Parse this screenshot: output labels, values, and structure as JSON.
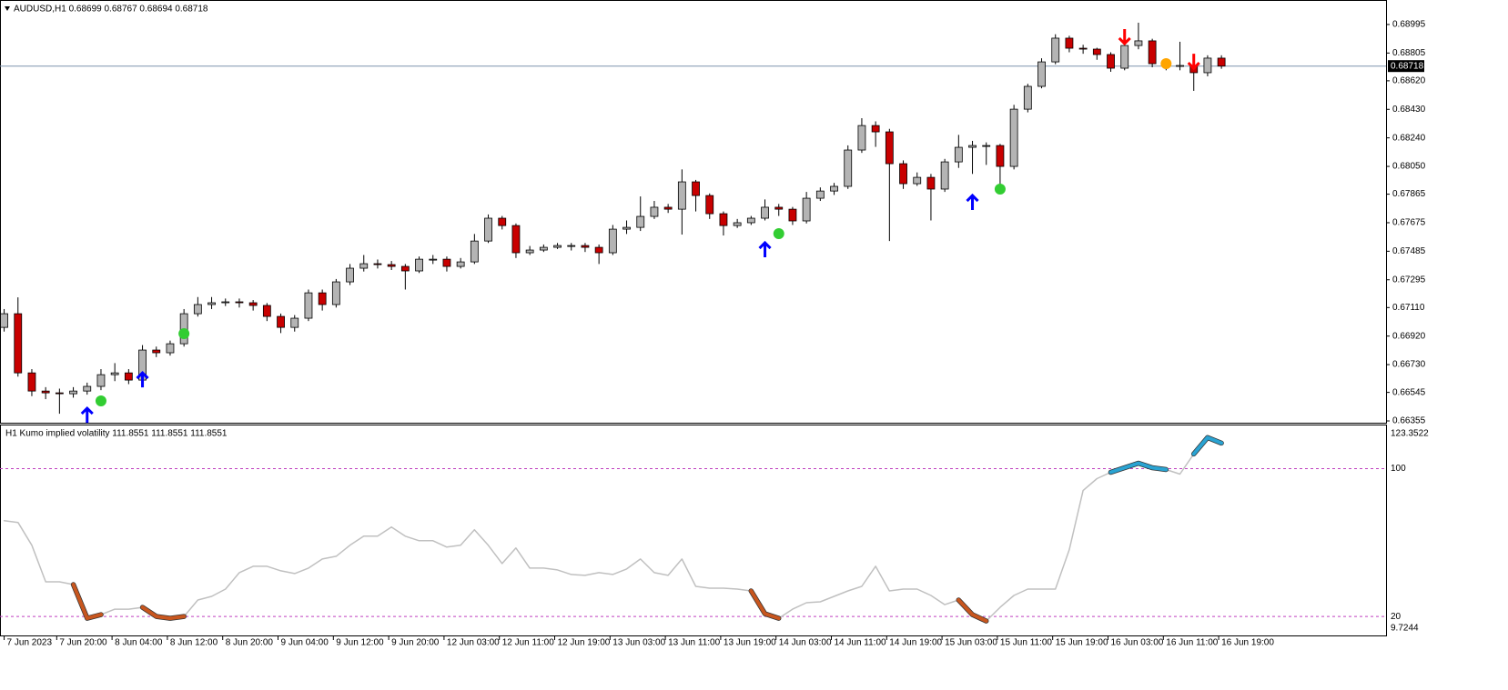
{
  "chart_data": [
    {
      "type": "candlestick",
      "title": "AUDUSD,H1  0.68699 0.68767 0.68694 0.68718",
      "xlim": [
        -0.3,
        99.9
      ],
      "ylim": [
        0.66343,
        0.69146
      ],
      "yticks": [
        0.68995,
        0.68805,
        {
          "value": 0.6862,
          "label": "0.68620"
        },
        {
          "value": 0.6843,
          "label": "0.68430"
        },
        {
          "value": 0.6824,
          "label": "0.68240"
        },
        {
          "value": 0.6805,
          "label": "0.68050"
        },
        0.67865,
        0.67675,
        0.67485,
        0.67295,
        {
          "value": 0.6711,
          "label": "0.67110"
        },
        {
          "value": 0.6692,
          "label": "0.66920"
        },
        {
          "value": 0.6673,
          "label": "0.66730"
        },
        0.66545,
        0.66355
      ],
      "last_price": 0.68718,
      "up_color": "#b4b4b4",
      "down_color": "#c80000",
      "ohlc": [
        [
          0.66978,
          0.671,
          0.6695,
          0.67069
        ],
        [
          0.67069,
          0.67178,
          0.6665,
          0.66675
        ],
        [
          0.66675,
          0.667,
          0.6652,
          0.66554
        ],
        [
          0.66554,
          0.6658,
          0.665,
          0.66542
        ],
        [
          0.66542,
          0.6657,
          0.66403,
          0.66536
        ],
        [
          0.66536,
          0.6658,
          0.6651,
          0.66554
        ],
        [
          0.66554,
          0.6661,
          0.6653,
          0.66585
        ],
        [
          0.66585,
          0.667,
          0.6656,
          0.66663
        ],
        [
          0.66663,
          0.6674,
          0.6662,
          0.66675
        ],
        [
          0.66675,
          0.667,
          0.666,
          0.66627
        ],
        [
          0.66627,
          0.6686,
          0.6661,
          0.66827
        ],
        [
          0.66827,
          0.6685,
          0.6678,
          0.66809
        ],
        [
          0.66809,
          0.6689,
          0.6679,
          0.66869
        ],
        [
          0.66869,
          0.671,
          0.6685,
          0.67069
        ],
        [
          0.67069,
          0.6718,
          0.6705,
          0.6713
        ],
        [
          0.6713,
          0.6718,
          0.671,
          0.67142
        ],
        [
          0.67142,
          0.6717,
          0.6712,
          0.67148
        ],
        [
          0.67148,
          0.6717,
          0.6711,
          0.67142
        ],
        [
          0.67142,
          0.6716,
          0.6709,
          0.67124
        ],
        [
          0.67124,
          0.6714,
          0.6702,
          0.67051
        ],
        [
          0.67051,
          0.6707,
          0.6694,
          0.66978
        ],
        [
          0.66978,
          0.6706,
          0.6695,
          0.67039
        ],
        [
          0.67039,
          0.6723,
          0.6702,
          0.67208
        ],
        [
          0.67208,
          0.6723,
          0.6709,
          0.6713
        ],
        [
          0.6713,
          0.673,
          0.6711,
          0.67281
        ],
        [
          0.67281,
          0.674,
          0.6726,
          0.67372
        ],
        [
          0.67372,
          0.6746,
          0.6735,
          0.67402
        ],
        [
          0.67402,
          0.6743,
          0.6737,
          0.67396
        ],
        [
          0.67396,
          0.6742,
          0.6736,
          0.67384
        ],
        [
          0.67384,
          0.674,
          0.6723,
          0.67354
        ],
        [
          0.67354,
          0.6745,
          0.6734,
          0.67432
        ],
        [
          0.67432,
          0.6746,
          0.674,
          0.67432
        ],
        [
          0.67432,
          0.6745,
          0.6735,
          0.67384
        ],
        [
          0.67384,
          0.6744,
          0.6737,
          0.67414
        ],
        [
          0.67414,
          0.676,
          0.674,
          0.67553
        ],
        [
          0.67553,
          0.6773,
          0.6754,
          0.67705
        ],
        [
          0.67705,
          0.6772,
          0.6763,
          0.67656
        ],
        [
          0.67656,
          0.6767,
          0.6744,
          0.67475
        ],
        [
          0.67475,
          0.6752,
          0.6746,
          0.67493
        ],
        [
          0.67493,
          0.6753,
          0.6748,
          0.67511
        ],
        [
          0.67511,
          0.6754,
          0.675,
          0.67523
        ],
        [
          0.67523,
          0.6754,
          0.6749,
          0.67523
        ],
        [
          0.67523,
          0.6754,
          0.6748,
          0.67511
        ],
        [
          0.67511,
          0.6753,
          0.674,
          0.67475
        ],
        [
          0.67475,
          0.6766,
          0.6746,
          0.67632
        ],
        [
          0.67632,
          0.6769,
          0.676,
          0.67644
        ],
        [
          0.67644,
          0.6785,
          0.6762,
          0.67717
        ],
        [
          0.67717,
          0.6782,
          0.677,
          0.67778
        ],
        [
          0.67778,
          0.678,
          0.6774,
          0.67765
        ],
        [
          0.67765,
          0.6803,
          0.67596,
          0.67947
        ],
        [
          0.67947,
          0.6796,
          0.6775,
          0.67856
        ],
        [
          0.67856,
          0.6787,
          0.677,
          0.67735
        ],
        [
          0.67735,
          0.6775,
          0.6759,
          0.67656
        ],
        [
          0.67656,
          0.677,
          0.6764,
          0.67675
        ],
        [
          0.67675,
          0.6772,
          0.6766,
          0.67705
        ],
        [
          0.67705,
          0.6783,
          0.6769,
          0.67778
        ],
        [
          0.67778,
          0.678,
          0.6772,
          0.67765
        ],
        [
          0.67765,
          0.6778,
          0.6766,
          0.67687
        ],
        [
          0.67687,
          0.6788,
          0.6767,
          0.67838
        ],
        [
          0.67838,
          0.6791,
          0.6782,
          0.67886
        ],
        [
          0.67886,
          0.6794,
          0.6786,
          0.67917
        ],
        [
          0.67917,
          0.6819,
          0.679,
          0.68159
        ],
        [
          0.68159,
          0.68371,
          0.6814,
          0.68322
        ],
        [
          0.68322,
          0.6835,
          0.6818,
          0.6828
        ],
        [
          0.6828,
          0.683,
          0.67553,
          0.68068
        ],
        [
          0.68068,
          0.6809,
          0.679,
          0.67935
        ],
        [
          0.67935,
          0.6801,
          0.6792,
          0.67977
        ],
        [
          0.67977,
          0.68,
          0.6769,
          0.67899
        ],
        [
          0.67899,
          0.681,
          0.6788,
          0.6808
        ],
        [
          0.6808,
          0.6826,
          0.6804,
          0.68177
        ],
        [
          0.68177,
          0.6822,
          0.68,
          0.68189
        ],
        [
          0.68189,
          0.6821,
          0.6806,
          0.68189
        ],
        [
          0.68189,
          0.682,
          0.679,
          0.6805
        ],
        [
          0.6805,
          0.6846,
          0.6803,
          0.68431
        ],
        [
          0.68431,
          0.686,
          0.6841,
          0.68583
        ],
        [
          0.68583,
          0.6877,
          0.6857,
          0.68746
        ],
        [
          0.68746,
          0.6893,
          0.6873,
          0.68904
        ],
        [
          0.68904,
          0.6892,
          0.6881,
          0.68837
        ],
        [
          0.68837,
          0.6886,
          0.688,
          0.68831
        ],
        [
          0.68831,
          0.6884,
          0.6876,
          0.68795
        ],
        [
          0.68795,
          0.6881,
          0.6868,
          0.68704
        ],
        [
          0.68704,
          0.6888,
          0.6869,
          0.68855
        ],
        [
          0.68855,
          0.69007,
          0.6883,
          0.68886
        ],
        [
          0.68886,
          0.689,
          0.6871,
          0.68734
        ],
        [
          0.68734,
          0.6876,
          0.6869,
          0.68722
        ],
        [
          0.68722,
          0.6888,
          0.6869,
          0.68722
        ],
        [
          0.68722,
          0.6876,
          0.68553,
          0.68674
        ],
        [
          0.68674,
          0.6879,
          0.6865,
          0.68771
        ],
        [
          0.68771,
          0.6879,
          0.687,
          0.68718
        ]
      ],
      "markers": [
        {
          "shape": "arrow-up",
          "color": "#0000ff",
          "x": [
            6,
            10,
            55,
            70
          ],
          "values": [
            0.66391,
            0.66627,
            0.67493,
            0.67808
          ]
        },
        {
          "shape": "dot",
          "color": "#32cd32",
          "x": [
            7,
            13,
            56,
            72
          ],
          "values": [
            0.66488,
            0.66936,
            0.67602,
            0.67899
          ]
        },
        {
          "shape": "arrow-down",
          "color": "#ff0000",
          "x": [
            81,
            86
          ],
          "values": [
            0.68916,
            0.68752
          ]
        },
        {
          "shape": "dot",
          "color": "#ffa500",
          "x": [
            84
          ],
          "values": [
            0.68734
          ]
        }
      ]
    },
    {
      "type": "line",
      "title": "H1 Kumo implied volatility 111.8551 111.8551 111.8551",
      "xlim": [
        -0.3,
        99.9
      ],
      "ylim": [
        9.7244,
        123.3522
      ],
      "yticks": [
        100,
        20
      ],
      "xticks": [
        {
          "value": 0,
          "label": "7 Jun 2023"
        },
        {
          "value": 3.8,
          "label": "7 Jun 20:00"
        },
        {
          "value": 7.8,
          "label": "8 Jun 04:00"
        },
        {
          "value": 11.8,
          "label": "8 Jun 12:00"
        },
        {
          "value": 15.8,
          "label": "8 Jun 20:00"
        },
        {
          "value": 19.8,
          "label": "9 Jun 04:00"
        },
        {
          "value": 23.8,
          "label": "9 Jun 12:00"
        },
        {
          "value": 27.8,
          "label": "9 Jun 20:00"
        },
        {
          "value": 31.8,
          "label": "12 Jun 03:00"
        },
        {
          "value": 35.8,
          "label": "12 Jun 11:00"
        },
        {
          "value": 39.8,
          "label": "12 Jun 19:00"
        },
        {
          "value": 43.8,
          "label": "13 Jun 03:00"
        },
        {
          "value": 47.8,
          "label": "13 Jun 11:00"
        },
        {
          "value": 51.8,
          "label": "13 Jun 19:00"
        },
        {
          "value": 55.8,
          "label": "14 Jun 03:00"
        },
        {
          "value": 59.8,
          "label": "14 Jun 11:00"
        },
        {
          "value": 63.8,
          "label": "14 Jun 19:00"
        },
        {
          "value": 67.8,
          "label": "15 Jun 03:00"
        },
        {
          "value": 71.8,
          "label": "15 Jun 11:00"
        },
        {
          "value": 75.8,
          "label": "15 Jun 19:00"
        },
        {
          "value": 79.8,
          "label": "16 Jun 03:00"
        },
        {
          "value": 83.8,
          "label": "16 Jun 11:00"
        },
        {
          "value": 87.8,
          "label": "16 Jun 19:00"
        }
      ],
      "series": [
        {
          "color": "#c0c0c0",
          "width": 1.5,
          "values": [
            71.85,
            70.86,
            58.52,
            38.77,
            38.77,
            37.28,
            19.01,
            20.99,
            23.95,
            23.95,
            24.94,
            20,
            19.01,
            20,
            28.89,
            30.86,
            34.81,
            43.7,
            47.16,
            47.16,
            44.69,
            43.21,
            46.17,
            51.11,
            52.59,
            58.52,
            63.46,
            63.46,
            68.4,
            63.46,
            60.99,
            60.99,
            57.53,
            58.52,
            66.91,
            58.52,
            48.64,
            57.04,
            46.17,
            46.17,
            45.19,
            42.72,
            42.22,
            43.7,
            42.72,
            45.68,
            51.11,
            43.7,
            42.22,
            51.11,
            36.3,
            35.31,
            35.31,
            34.81,
            33.83,
            21.48,
            19.01,
            23.95,
            27.41,
            27.9,
            30.86,
            33.83,
            36.3,
            47.16,
            33.83,
            34.81,
            34.81,
            31.36,
            26.42,
            28.89,
            20.99,
            17.53,
            24.94,
            31.36,
            34.81,
            34.81,
            34.81,
            56.05,
            88.15,
            94.57,
            98.02,
            100.49,
            102.96,
            100.49,
            99.51,
            97.04,
            107.9,
            116.79,
            113.83
          ]
        },
        {
          "color": "#c8561e",
          "width": 4,
          "values": [
            null,
            null,
            null,
            null,
            null,
            37.28,
            19.01,
            20.99,
            null,
            null,
            24.94,
            20,
            19.01,
            20,
            null,
            null,
            null,
            null,
            null,
            null,
            null,
            null,
            null,
            null,
            null,
            null,
            null,
            null,
            null,
            null,
            null,
            null,
            null,
            null,
            null,
            null,
            null,
            null,
            null,
            null,
            null,
            null,
            null,
            null,
            null,
            null,
            null,
            null,
            null,
            null,
            null,
            null,
            null,
            null,
            33.83,
            21.48,
            19.01,
            null,
            null,
            null,
            null,
            null,
            null,
            null,
            null,
            null,
            null,
            null,
            null,
            28.89,
            20.99,
            17.53,
            null,
            null,
            null,
            null,
            null,
            null,
            null,
            null,
            null,
            null,
            null,
            null,
            null,
            null,
            null,
            null,
            null
          ]
        },
        {
          "color": "#2aa3d2",
          "width": 4,
          "values": [
            null,
            null,
            null,
            null,
            null,
            null,
            null,
            null,
            null,
            null,
            null,
            null,
            null,
            null,
            null,
            null,
            null,
            null,
            null,
            null,
            null,
            null,
            null,
            null,
            null,
            null,
            null,
            null,
            null,
            null,
            null,
            null,
            null,
            null,
            null,
            null,
            null,
            null,
            null,
            null,
            null,
            null,
            null,
            null,
            null,
            null,
            null,
            null,
            null,
            null,
            null,
            null,
            null,
            null,
            null,
            null,
            null,
            null,
            null,
            null,
            null,
            null,
            null,
            null,
            null,
            null,
            null,
            null,
            null,
            null,
            null,
            null,
            null,
            null,
            null,
            null,
            null,
            null,
            null,
            null,
            98.02,
            100.49,
            102.96,
            100.49,
            99.51,
            null,
            107.9,
            116.79,
            113.83
          ]
        }
      ],
      "level_color": "#c040c0"
    }
  ]
}
